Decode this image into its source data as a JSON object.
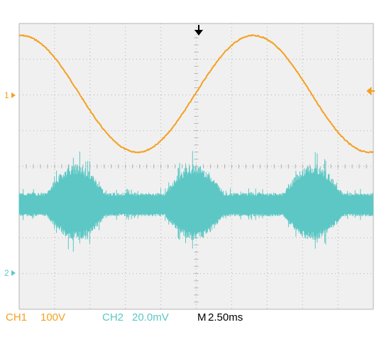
{
  "colors": {
    "background": "#f0f0f0",
    "grid": "#b4b4b4",
    "ch1": "#f5a021",
    "ch2": "#5cc7c4",
    "text": "#000000"
  },
  "status": {
    "ch1_label": "CH1",
    "ch1_scale": "100V",
    "ch2_label": "CH2",
    "ch2_scale": "20.0mV",
    "time_label": "M",
    "time_scale": "2.50ms"
  },
  "markers": {
    "ch1_marker": "1",
    "ch2_marker": "2",
    "trigger_icon": "down-arrow",
    "trigger_level_icon": "left-arrow"
  }
}
